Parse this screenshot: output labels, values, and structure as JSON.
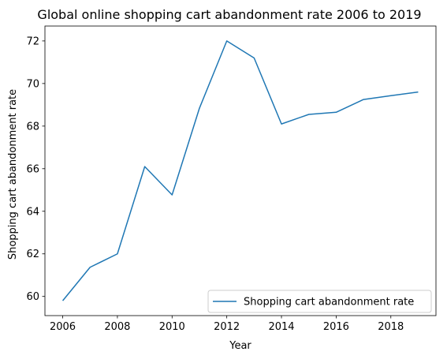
{
  "chart_data": {
    "type": "line",
    "title": "Global online shopping cart abandonment rate 2006 to 2019",
    "xlabel": "Year",
    "ylabel": "Shopping cart abandonment rate",
    "x": [
      2006,
      2007,
      2008,
      2009,
      2010,
      2011,
      2012,
      2013,
      2014,
      2015,
      2016,
      2017,
      2018,
      2019
    ],
    "series": [
      {
        "name": "Shopping cart abandonment rate",
        "values": [
          59.8,
          61.37,
          62.0,
          66.1,
          64.77,
          68.84,
          72.0,
          71.2,
          68.1,
          68.55,
          68.65,
          69.25,
          69.43,
          69.6
        ],
        "color": "#1f77b4"
      }
    ],
    "xlim": [
      2005.35,
      2019.65
    ],
    "ylim": [
      59.1,
      72.7
    ],
    "xticks": [
      "2006",
      "2008",
      "2010",
      "2012",
      "2014",
      "2016",
      "2018"
    ],
    "yticks": [
      "60",
      "62",
      "64",
      "66",
      "68",
      "70",
      "72"
    ],
    "grid": false,
    "legend_position": "lower right"
  }
}
